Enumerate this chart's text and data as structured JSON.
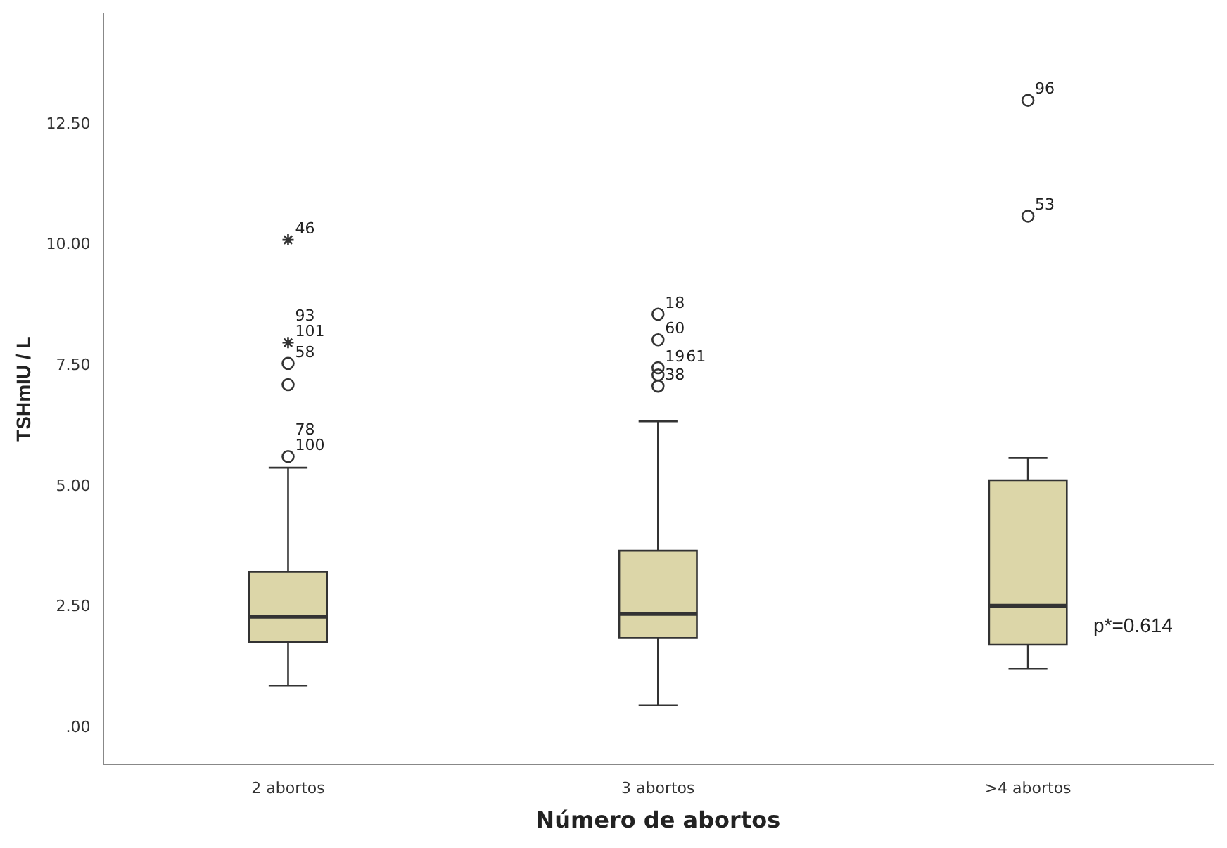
{
  "chart_data": {
    "type": "box",
    "xlabel": "Número de abortos",
    "ylabel": "TSHmIU / L",
    "categories": [
      "2 abortos",
      "3 abortos",
      ">4 abortos"
    ],
    "color": "#dcd6a8",
    "boxes": [
      {
        "low": 0.87,
        "q1": 1.78,
        "median": 2.3,
        "q3": 3.23,
        "high": 5.39
      },
      {
        "low": 0.47,
        "q1": 1.86,
        "median": 2.36,
        "q3": 3.67,
        "high": 6.35
      },
      {
        "low": 1.22,
        "q1": 1.72,
        "median": 2.53,
        "q3": 5.13,
        "high": 5.59
      }
    ],
    "series": [
      {
        "type": "scatter",
        "color": "#333333",
        "x": [
          "2 abortos",
          "2 abortos",
          "2 abortos",
          "2 abortos",
          "2 abortos",
          "3 abortos",
          "3 abortos",
          "3 abortos",
          "3 abortos",
          "3 abortos",
          ">4 abortos",
          ">4 abortos"
        ],
        "values": [
          5.62,
          7.11,
          7.55,
          7.98,
          10.11,
          7.08,
          7.31,
          7.46,
          8.04,
          8.57,
          10.6,
          13.0
        ]
      }
    ],
    "ylim": [
      -0.76,
      14.8
    ],
    "yticks": [
      {
        "value": 0,
        "label": ".00"
      },
      {
        "value": 2.5,
        "label": "2.50"
      },
      {
        "value": 5,
        "label": "5.00"
      },
      {
        "value": 7.5,
        "label": "7.50"
      },
      {
        "value": 10,
        "label": "10.00"
      },
      {
        "value": 12.5,
        "label": "12.50"
      }
    ],
    "grid": false,
    "legend": false,
    "annotations": [
      {
        "text": "46",
        "x": "2 abortos",
        "y": 10.11
      },
      {
        "text": "101",
        "x": "2 abortos",
        "y": 7.98
      },
      {
        "text": "93",
        "x": "2 abortos",
        "y": 7.98
      },
      {
        "text": "58",
        "x": "2 abortos",
        "y": 7.55
      },
      {
        "text": "100",
        "x": "2 abortos",
        "y": 5.62
      },
      {
        "text": "78",
        "x": "2 abortos",
        "y": 5.62
      },
      {
        "text": "18",
        "x": "3 abortos",
        "y": 8.57
      },
      {
        "text": "60",
        "x": "3 abortos",
        "y": 8.04
      },
      {
        "text": "19",
        "x": "3 abortos",
        "y": 7.46
      },
      {
        "text": "38",
        "x": "3 abortos",
        "y": 7.08
      },
      {
        "text": "61",
        "x": "3 abortos",
        "y": 7.31
      },
      {
        "text": "96",
        "x": ">4 abortos",
        "y": 13.0
      },
      {
        "text": "53",
        "x": ">4 abortos",
        "y": 10.6
      },
      "p*=0.614"
    ]
  }
}
